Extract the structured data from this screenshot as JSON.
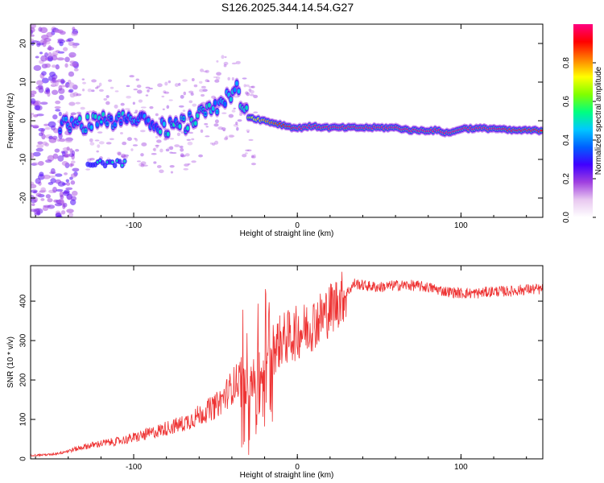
{
  "title": "S126.2025.344.14.54.G27",
  "chart_data": [
    {
      "type": "heatmap",
      "name": "spectrogram",
      "xlabel": "Height of straight line (km)",
      "ylabel": "Frequency (Hz)",
      "xlim": [
        -163,
        150
      ],
      "ylim": [
        -25,
        25
      ],
      "x_ticks": [
        -100,
        0,
        100
      ],
      "x_tick_labels": [
        "-100",
        "0",
        "100"
      ],
      "y_ticks": [
        20,
        10,
        0,
        -10,
        -20
      ],
      "y_tick_labels": [
        "20",
        "10",
        "0",
        "-10",
        "-20"
      ],
      "colorbar": {
        "label": "Normalized spectral amplitude",
        "range": [
          0,
          1
        ],
        "ticks": [
          0.0,
          0.2,
          0.4,
          0.6,
          0.8
        ],
        "tick_labels": [
          "0.0",
          "0.2",
          "0.4",
          "0.6",
          "0.8"
        ],
        "colors": [
          "#ffffff",
          "#e8c8f0",
          "#a040e0",
          "#4000ff",
          "#0060ff",
          "#00c8ff",
          "#00ff80",
          "#80ff00",
          "#ffff00",
          "#ff8000",
          "#ff0000",
          "#ff0080"
        ]
      },
      "ridge": {
        "x": [
          -145,
          -130,
          -115,
          -100,
          -90,
          -80,
          -70,
          -60,
          -52,
          -45,
          -40,
          -36,
          -33,
          -30,
          -25,
          -20,
          -15,
          -10,
          -5,
          0,
          5,
          10,
          20,
          40,
          60,
          70,
          80,
          85,
          90,
          95,
          100,
          110,
          120,
          130,
          145
        ],
        "freq_hz": [
          -1,
          -1,
          0,
          0,
          -1,
          -2,
          -1,
          1,
          3,
          5,
          7,
          8,
          3,
          1,
          0.5,
          0,
          -0.5,
          -1,
          -1.5,
          -2,
          -1.5,
          -1.5,
          -1.8,
          -1.8,
          -1.8,
          -2.5,
          -2.5,
          -2.5,
          -3,
          -3,
          -2,
          -2,
          -2,
          -2.5,
          -2.5
        ],
        "peak": [
          0.4,
          0.45,
          0.45,
          0.4,
          0.4,
          0.45,
          0.5,
          0.5,
          0.45,
          0.45,
          0.5,
          0.5,
          0.6,
          0.65,
          0.75,
          0.8,
          0.85,
          0.9,
          0.95,
          1,
          1,
          1,
          1,
          1,
          1,
          1,
          1,
          1,
          1,
          1,
          1,
          1,
          1,
          0.95,
          0.95
        ]
      },
      "secondary_feature": {
        "x_range": [
          -128,
          -105
        ],
        "freq_hz": -11
      }
    },
    {
      "type": "line",
      "name": "snr",
      "xlabel": "Height of straight line (km)",
      "ylabel": "SNR (10 * v/v)",
      "xlim": [
        -163,
        150
      ],
      "ylim": [
        0,
        490
      ],
      "x_ticks": [
        -100,
        0,
        100
      ],
      "x_tick_labels": [
        "-100",
        "0",
        "100"
      ],
      "y_ticks": [
        0,
        100,
        200,
        300,
        400
      ],
      "y_tick_labels": [
        "0",
        "100",
        "200",
        "300",
        "400"
      ],
      "color": "#ee3333",
      "series": [
        {
          "name": "SNR",
          "x": [
            -163,
            -150,
            -140,
            -130,
            -120,
            -110,
            -100,
            -90,
            -80,
            -70,
            -60,
            -50,
            -45,
            -40,
            -35,
            -30,
            -25,
            -22,
            -18,
            -15,
            -10,
            -5,
            0,
            5,
            10,
            15,
            20,
            25,
            30,
            35,
            40,
            50,
            60,
            70,
            80,
            90,
            100,
            110,
            120,
            130,
            140,
            150
          ],
          "values": [
            8,
            10,
            18,
            28,
            35,
            40,
            48,
            58,
            70,
            80,
            100,
            120,
            140,
            165,
            185,
            210,
            200,
            225,
            260,
            280,
            300,
            310,
            320,
            330,
            345,
            360,
            380,
            400,
            420,
            445,
            440,
            435,
            440,
            440,
            435,
            425,
            420,
            420,
            425,
            425,
            430,
            430
          ]
        }
      ]
    }
  ]
}
